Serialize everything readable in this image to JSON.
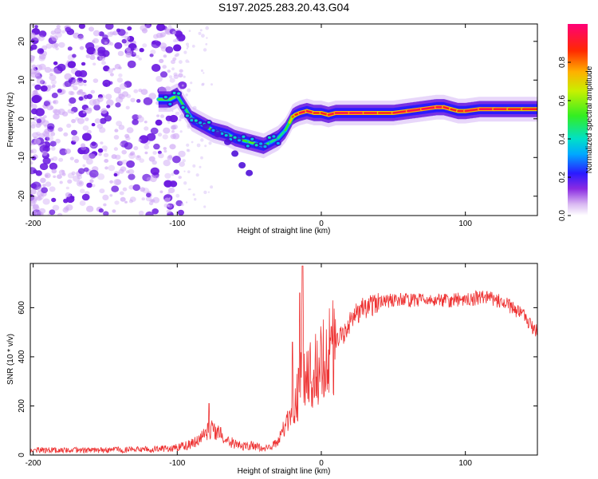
{
  "title": "S197.2025.283.20.43.G04",
  "chart_data": [
    {
      "type": "heatmap",
      "name": "spectrogram",
      "xlabel": "Height of straight line (km)",
      "ylabel": "Frequency (Hz)",
      "xlim": [
        -202,
        150
      ],
      "ylim": [
        -25,
        24.5
      ],
      "xticks": [
        -200,
        -100,
        0,
        100
      ],
      "xtick_labels": [
        "-200",
        "-100",
        "0",
        "100"
      ],
      "yticks": [
        -20,
        -10,
        0,
        10,
        20
      ],
      "ytick_labels": [
        "-20",
        "-10",
        "0",
        "10",
        "20"
      ],
      "ridge": {
        "x": [
          -113,
          -105,
          -100,
          -95,
          -90,
          -85,
          -80,
          -75,
          -70,
          -65,
          -60,
          -55,
          -50,
          -45,
          -40,
          -35,
          -30,
          -25,
          -22,
          -20,
          -18,
          -15,
          -10,
          -5,
          0,
          5,
          10,
          20,
          30,
          40,
          50,
          60,
          70,
          80,
          85,
          90,
          95,
          100,
          110,
          120,
          130,
          140,
          150
        ],
        "y": [
          5,
          5,
          6,
          3,
          0,
          -1,
          -2,
          -3,
          -3.5,
          -4,
          -5,
          -5.5,
          -6,
          -6.5,
          -7,
          -6,
          -5,
          -3,
          -1,
          0.5,
          1,
          1.5,
          2,
          1.5,
          1.5,
          1,
          1.5,
          1.5,
          1.5,
          1.5,
          1.5,
          2,
          2.5,
          3,
          3,
          2.5,
          2,
          2,
          2.5,
          2.5,
          2.5,
          2.5,
          2.5
        ],
        "amplitude": [
          0.5,
          0.6,
          0.55,
          0.45,
          0.5,
          0.55,
          0.55,
          0.5,
          0.5,
          0.45,
          0.45,
          0.5,
          0.55,
          0.55,
          0.5,
          0.45,
          0.45,
          0.45,
          0.6,
          0.8,
          0.85,
          0.9,
          0.95,
          0.9,
          0.9,
          0.9,
          0.95,
          0.95,
          0.95,
          0.9,
          0.9,
          0.95,
          0.95,
          0.95,
          0.95,
          0.9,
          0.9,
          0.9,
          0.95,
          0.95,
          0.9,
          0.9,
          0.9
        ]
      },
      "branch": {
        "x": [
          -80,
          -72,
          -65,
          -60,
          -55,
          -50
        ],
        "y": [
          -2,
          -4,
          -6,
          -9,
          -12,
          -14
        ]
      }
    },
    {
      "type": "colorbar",
      "name": "amplitude-colorbar",
      "label": "Normalized spectral amplitude",
      "range": [
        0,
        1
      ],
      "ticks": [
        0.0,
        0.2,
        0.4,
        0.6,
        0.8
      ],
      "tick_labels": [
        "0.0",
        "0.2",
        "0.4",
        "0.6",
        "0.8"
      ]
    },
    {
      "type": "line",
      "name": "snr",
      "xlabel": "Height of straight line (km)",
      "ylabel": "SNR (10 * v/v)",
      "xlim": [
        -202,
        150
      ],
      "ylim": [
        0,
        780
      ],
      "color": "#ee3333",
      "xticks": [
        -200,
        -100,
        0,
        100
      ],
      "xtick_labels": [
        "-200",
        "-100",
        "0",
        "100"
      ],
      "yticks": [
        0,
        200,
        400,
        600
      ],
      "ytick_labels": [
        "0",
        "200",
        "400",
        "600"
      ],
      "envelope": {
        "x": [
          -202,
          -150,
          -110,
          -100,
          -90,
          -85,
          -80,
          -75,
          -70,
          -65,
          -60,
          -55,
          -50,
          -45,
          -40,
          -35,
          -30,
          -25,
          -20,
          -15,
          -12,
          -10,
          -5,
          0,
          5,
          10,
          15,
          20,
          25,
          30,
          40,
          50,
          60,
          70,
          80,
          90,
          100,
          110,
          120,
          130,
          140,
          150
        ],
        "y": [
          20,
          20,
          25,
          30,
          45,
          60,
          95,
          110,
          85,
          60,
          45,
          35,
          40,
          35,
          25,
          30,
          60,
          110,
          160,
          280,
          350,
          300,
          360,
          380,
          420,
          450,
          490,
          540,
          580,
          600,
          620,
          630,
          630,
          630,
          625,
          630,
          635,
          640,
          635,
          610,
          570,
          500
        ]
      },
      "spikes": [
        {
          "x": -13,
          "y": 770
        },
        {
          "x": -15,
          "y": 660
        },
        {
          "x": -20,
          "y": 460
        },
        {
          "x": -78,
          "y": 210
        }
      ]
    }
  ]
}
